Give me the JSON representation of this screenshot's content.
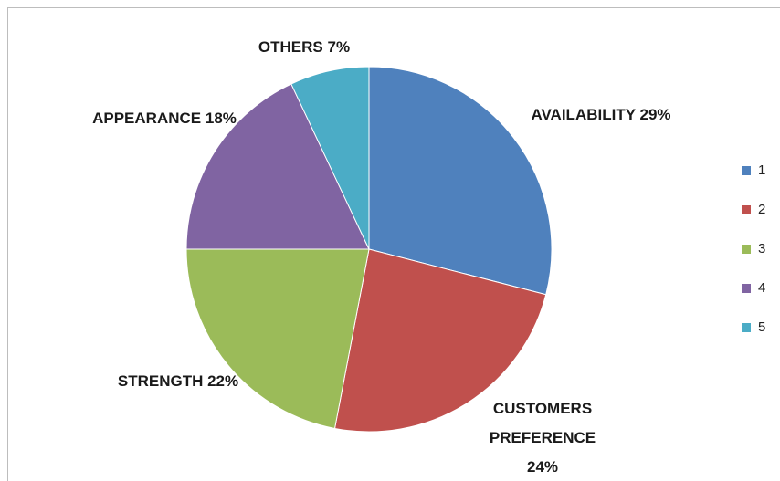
{
  "chart_data": {
    "type": "pie",
    "categories": [
      "1",
      "2",
      "3",
      "4",
      "5"
    ],
    "labels": [
      "AVAILABILITY",
      "CUSTOMERS PREFERENCE",
      "STRENGTH",
      "APPEARANCE",
      "OTHERS"
    ],
    "values": [
      29,
      24,
      22,
      18,
      7
    ],
    "value_labels": [
      "29%",
      "24%",
      "22%",
      "18%",
      "7%"
    ],
    "colors": [
      "#4f81bd",
      "#c0504d",
      "#9bbb59",
      "#8064a2",
      "#4bacc6"
    ],
    "legend": "right"
  }
}
